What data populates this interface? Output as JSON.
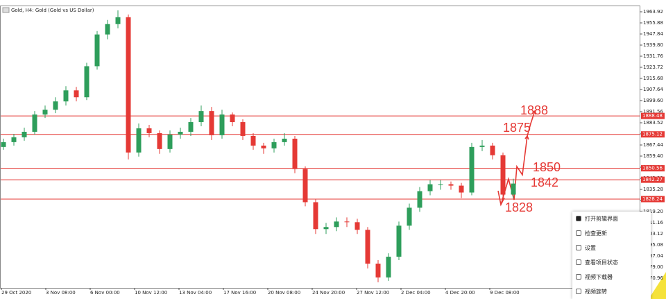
{
  "window": {
    "title": "Gold, H4: Gold (Gold vs US Dollar)"
  },
  "chart_data": {
    "type": "candlestick",
    "candles": [
      [
        1866,
        1872,
        1864,
        1869.5
      ],
      [
        1869.5,
        1875.5,
        1867,
        1873
      ],
      [
        1873,
        1880,
        1870.5,
        1877
      ],
      [
        1877,
        1892,
        1875,
        1889.5
      ],
      [
        1889.5,
        1896,
        1887,
        1893
      ],
      [
        1893,
        1902,
        1890.5,
        1899
      ],
      [
        1899,
        1910,
        1896,
        1907
      ],
      [
        1907,
        1909.5,
        1899,
        1902
      ],
      [
        1902,
        1927,
        1900,
        1924.5
      ],
      [
        1924.5,
        1950,
        1922,
        1947.5
      ],
      [
        1947.5,
        1958,
        1944,
        1955
      ],
      [
        1955,
        1965,
        1952,
        1960
      ],
      [
        1960,
        1962,
        1857,
        1862
      ],
      [
        1862,
        1883,
        1859,
        1879.5
      ],
      [
        1879.5,
        1882,
        1873,
        1876
      ],
      [
        1876,
        1878,
        1861,
        1864.5
      ],
      [
        1864.5,
        1878,
        1862,
        1875
      ],
      [
        1875,
        1880,
        1872,
        1877
      ],
      [
        1877,
        1887,
        1874,
        1884
      ],
      [
        1884,
        1896,
        1881,
        1892
      ],
      [
        1892,
        1895,
        1871,
        1874.5
      ],
      [
        1874.5,
        1893,
        1872,
        1889.5
      ],
      [
        1889.5,
        1891,
        1881,
        1884
      ],
      [
        1884,
        1886,
        1871,
        1874
      ],
      [
        1874,
        1876,
        1864,
        1867
      ],
      [
        1867,
        1869,
        1861,
        1865
      ],
      [
        1865,
        1872,
        1862,
        1869.5
      ],
      [
        1869.5,
        1876,
        1867,
        1872
      ],
      [
        1872,
        1874,
        1847,
        1850
      ],
      [
        1850,
        1852,
        1823,
        1826
      ],
      [
        1826,
        1828,
        1803,
        1806.5
      ],
      [
        1806.5,
        1811,
        1803,
        1808
      ],
      [
        1808,
        1815,
        1805,
        1812
      ],
      [
        1812,
        1815,
        1808,
        1811.5
      ],
      [
        1811.5,
        1814,
        1803,
        1806
      ],
      [
        1806,
        1808,
        1778,
        1781.5
      ],
      [
        1781.5,
        1784,
        1768,
        1771.5
      ],
      [
        1771.5,
        1789,
        1769,
        1786.5
      ],
      [
        1786.5,
        1812,
        1784,
        1809
      ],
      [
        1809,
        1825,
        1806,
        1822
      ],
      [
        1822,
        1837,
        1819,
        1834
      ],
      [
        1834,
        1842,
        1831,
        1839
      ],
      [
        1839,
        1842,
        1835,
        1839
      ],
      [
        1839,
        1841,
        1835,
        1838
      ],
      [
        1838,
        1840,
        1829,
        1833
      ],
      [
        1833,
        1869,
        1831,
        1866
      ],
      [
        1866,
        1871,
        1863,
        1867
      ],
      [
        1867,
        1869,
        1857,
        1860
      ],
      [
        1860,
        1862,
        1828,
        1831.5
      ],
      [
        1831.5,
        1843,
        1829,
        1839.5
      ]
    ],
    "up_color": "#2e9e5b",
    "down_color": "#e53935",
    "ylim": [
      1763.92,
      1968.44
    ],
    "yticks": [
      1963.92,
      1955.88,
      1947.84,
      {
        "value": 1939.8,
        "label": "1939.80"
      },
      1931.76,
      1923.72,
      1915.68,
      1907.64,
      {
        "value": 1899.6,
        "label": "1899.60"
      },
      1891.56,
      1883.52,
      1875.48,
      1867.44,
      {
        "value": 1859.4,
        "label": "1859.40"
      },
      1851.36,
      1843.32,
      1835.28,
      1827.24,
      {
        "value": 1819.2,
        "label": "1819.20"
      },
      1811.16,
      1803.12,
      1795.08,
      1787.04,
      {
        "value": 1779,
        "label": "1779.00"
      },
      1770.96
    ],
    "x_labels": [
      "29 Oct 2020",
      "3 Nov 08:00",
      "6 Nov 00:00",
      "10 Nov 12:00",
      "13 Nov 04:00",
      "17 Nov 16:00",
      "20 Nov 08:00",
      "24 Nov 20:00",
      "27 Nov 12:00",
      "2 Dec 04:00",
      "4 Dec 20:00",
      "9 Dec 08:00"
    ],
    "levels": [
      1888.48,
      1875.12,
      1850.56,
      1842.27,
      1828.24
    ],
    "level_color": "#e53935",
    "annotations": [
      "1888",
      "1875",
      "1850",
      "1842",
      "1828"
    ]
  },
  "context_menu": {
    "items": [
      "打开剪辑界面",
      "检查更新",
      "设置",
      "查看项目状态",
      "视频下载器",
      "视频旋转"
    ]
  }
}
